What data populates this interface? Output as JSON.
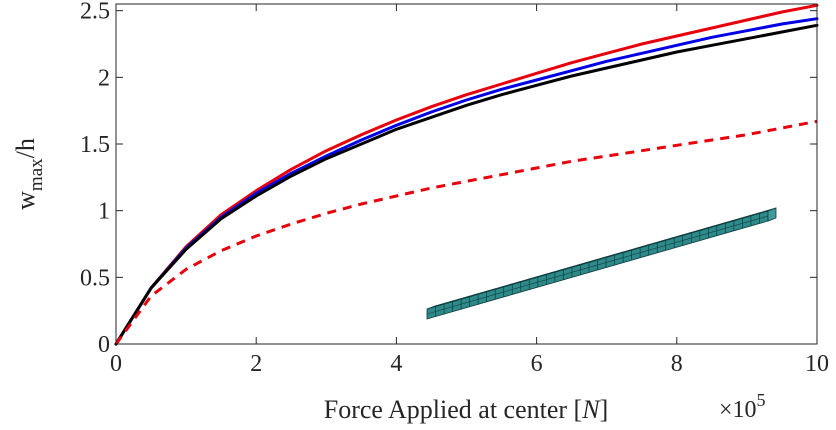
{
  "chart_data": {
    "type": "line",
    "title": "",
    "xlabel": {
      "main": "Force Applied at center [",
      "italic": "N",
      "end": "]"
    },
    "ylabel": {
      "w": "w",
      "sub": "max",
      "rest": "/h"
    },
    "x_exponent": {
      "times": "×10",
      "power": "5"
    },
    "xlim": [
      0,
      10
    ],
    "ylim": [
      0,
      2.55
    ],
    "xticks": [
      0,
      2,
      4,
      6,
      8,
      10
    ],
    "xtick_labels": [
      "0",
      "2",
      "4",
      "6",
      "8",
      "10"
    ],
    "yticks": [
      0,
      0.5,
      1,
      1.5,
      2,
      2.5
    ],
    "ytick_labels": [
      "0",
      "0.5",
      "1",
      "1.5",
      "2",
      "2.5"
    ],
    "grid": false,
    "legend": false,
    "series": [
      {
        "color": "#e8000b",
        "style": "solid",
        "x": [
          0,
          0.5,
          1,
          1.5,
          2,
          2.5,
          3,
          3.5,
          4,
          4.5,
          5,
          5.5,
          6,
          6.5,
          7,
          7.5,
          8,
          8.5,
          9,
          9.5,
          10
        ],
        "y": [
          0,
          0.42,
          0.73,
          0.97,
          1.15,
          1.31,
          1.45,
          1.57,
          1.68,
          1.78,
          1.87,
          1.95,
          2.03,
          2.11,
          2.18,
          2.25,
          2.31,
          2.37,
          2.43,
          2.49,
          2.54
        ]
      },
      {
        "color": "#0000e6",
        "style": "solid",
        "x": [
          0,
          0.5,
          1,
          1.5,
          2,
          2.5,
          3,
          3.5,
          4,
          4.5,
          5,
          5.5,
          6,
          6.5,
          7,
          7.5,
          8,
          8.5,
          9,
          9.5,
          10
        ],
        "y": [
          0,
          0.42,
          0.72,
          0.95,
          1.13,
          1.28,
          1.41,
          1.53,
          1.64,
          1.74,
          1.83,
          1.91,
          1.98,
          2.05,
          2.12,
          2.18,
          2.24,
          2.3,
          2.35,
          2.4,
          2.44
        ]
      },
      {
        "color": "#000000",
        "style": "solid",
        "x": [
          0,
          0.5,
          1,
          1.5,
          2,
          2.5,
          3,
          3.5,
          4,
          4.5,
          5,
          5.5,
          6,
          6.5,
          7,
          7.5,
          8,
          8.5,
          9,
          9.5,
          10
        ],
        "y": [
          0,
          0.42,
          0.71,
          0.94,
          1.11,
          1.26,
          1.39,
          1.5,
          1.61,
          1.7,
          1.79,
          1.87,
          1.94,
          2.01,
          2.07,
          2.13,
          2.19,
          2.24,
          2.29,
          2.34,
          2.39
        ]
      },
      {
        "color": "#e8000b",
        "style": "dashed",
        "x": [
          0,
          0.5,
          1,
          1.5,
          2,
          2.5,
          3,
          3.5,
          4,
          4.5,
          5,
          5.5,
          6,
          6.5,
          7,
          7.5,
          8,
          8.5,
          9,
          9.5,
          10
        ],
        "y": [
          0,
          0.36,
          0.56,
          0.7,
          0.81,
          0.9,
          0.98,
          1.05,
          1.11,
          1.17,
          1.22,
          1.27,
          1.32,
          1.37,
          1.41,
          1.45,
          1.49,
          1.53,
          1.57,
          1.62,
          1.67
        ]
      }
    ],
    "inset": {
      "description_icon": "meshed-beam-icon",
      "color": "#2e8a8a",
      "segments": 40
    }
  }
}
